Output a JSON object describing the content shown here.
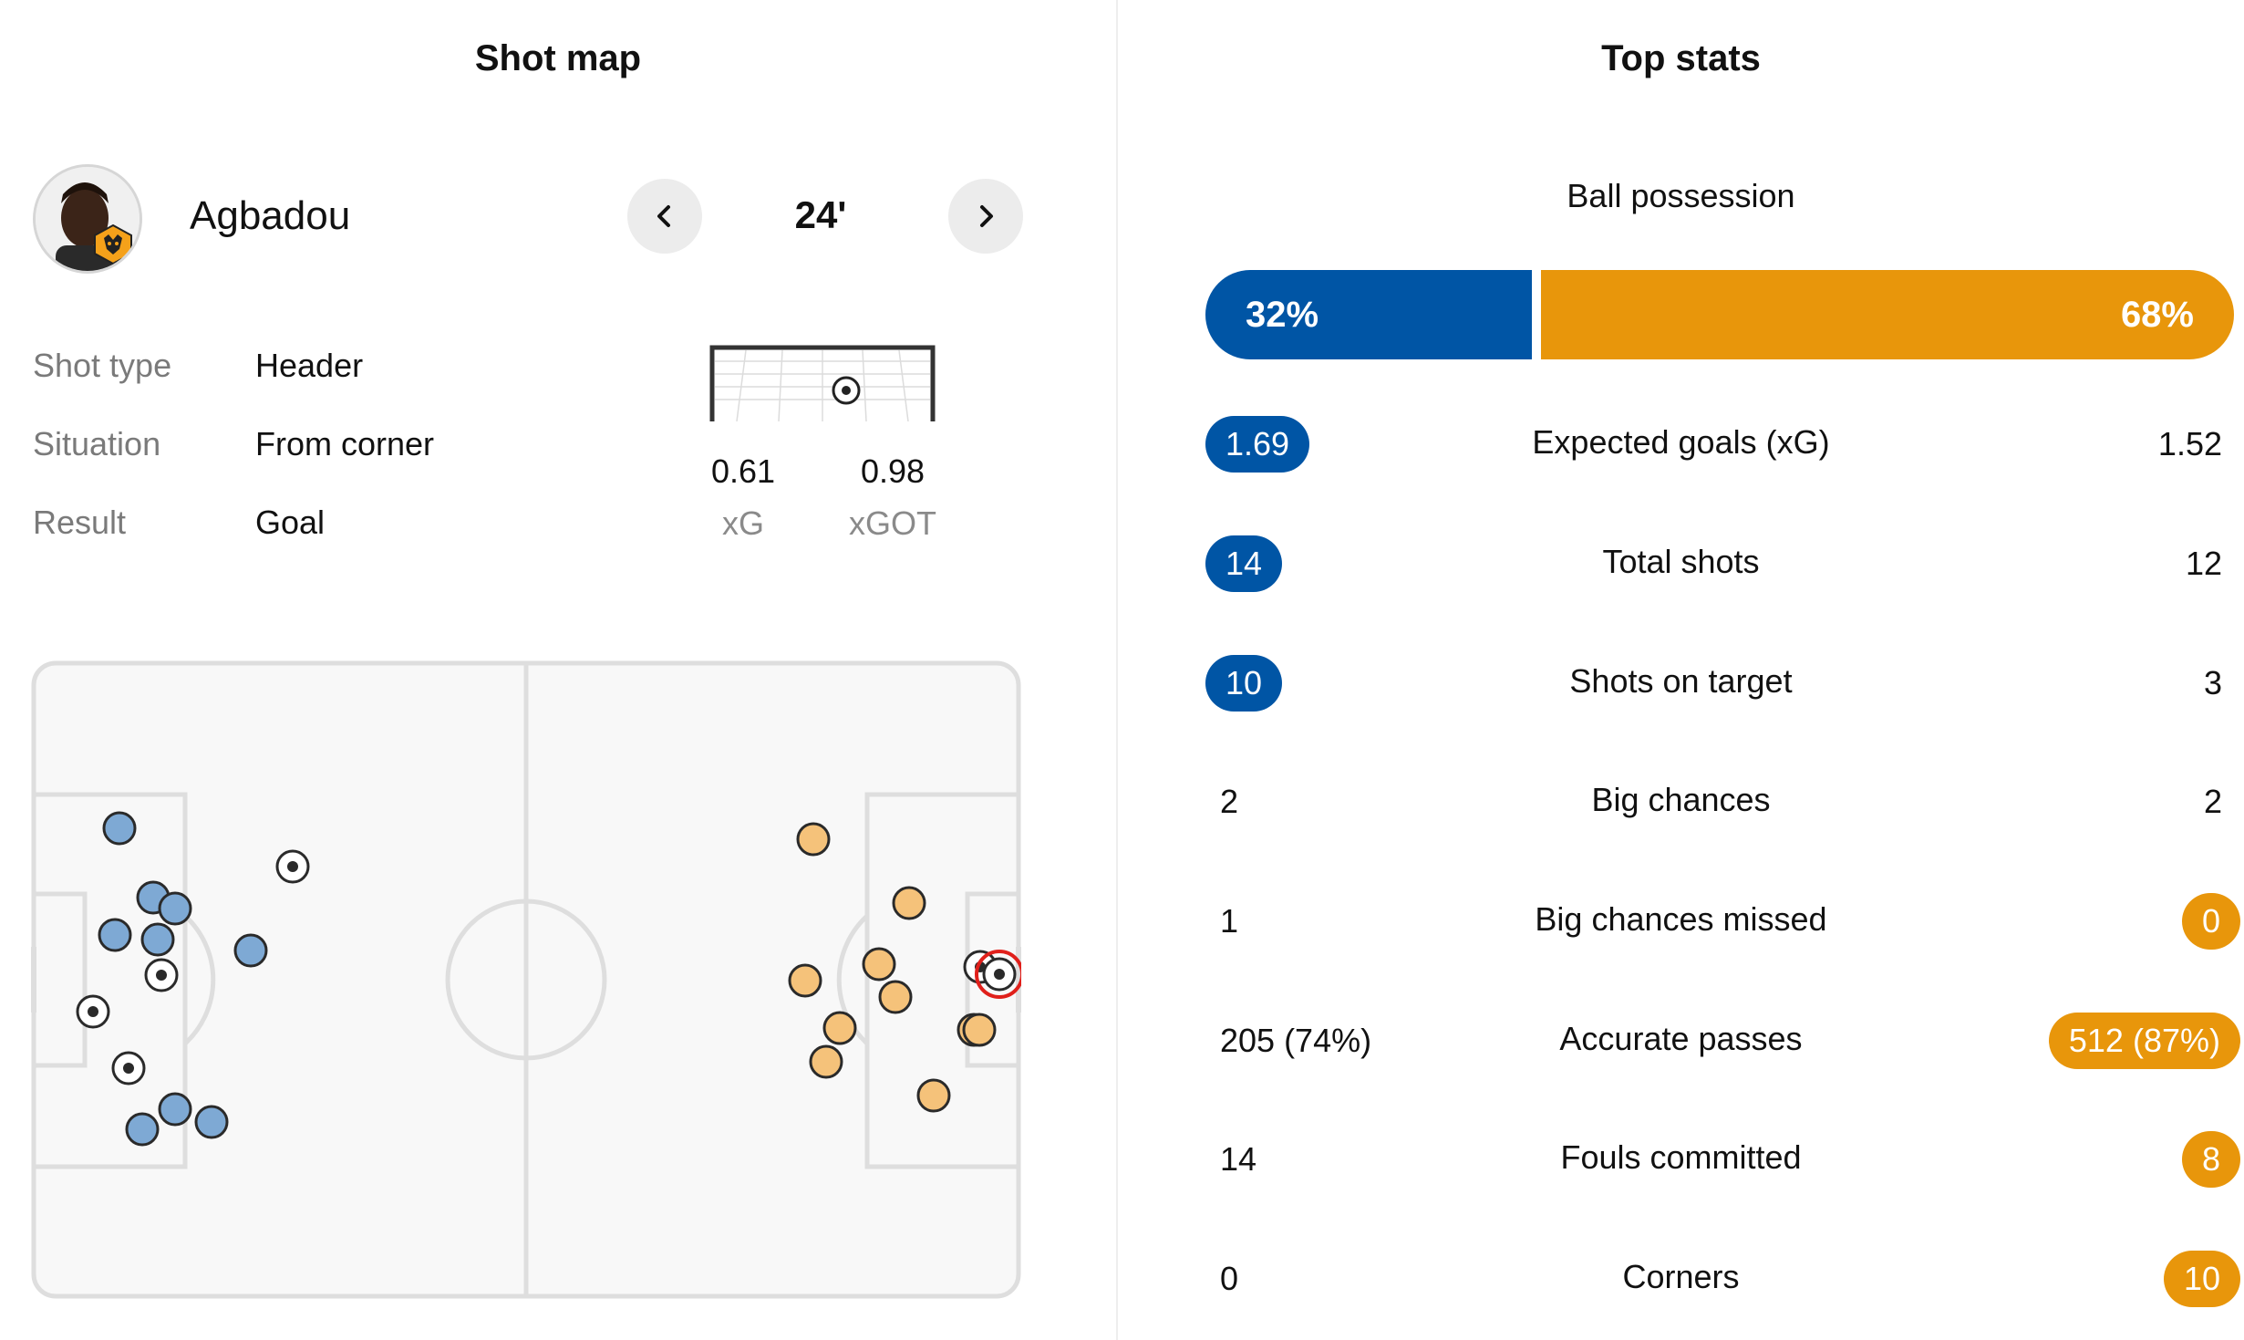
{
  "shot_map": {
    "title": "Shot map",
    "player": {
      "name": "Agbadou",
      "badge_icon": "wolves-badge-icon"
    },
    "minute": "24'",
    "details": [
      {
        "label": "Shot type",
        "value": "Header"
      },
      {
        "label": "Situation",
        "value": "From corner"
      },
      {
        "label": "Result",
        "value": "Goal"
      }
    ],
    "xg": {
      "value": "0.61",
      "label": "xG"
    },
    "xgot": {
      "value": "0.98",
      "label": "xGOT"
    },
    "colors": {
      "home": "#0055a5",
      "home_light": "#7ea9d4",
      "away": "#e8960b",
      "away_light": "#f5c27a",
      "selected": "#e0201b"
    }
  },
  "top_stats": {
    "title": "Top stats",
    "possession": {
      "label": "Ball possession",
      "home": "32%",
      "away": "68%",
      "home_value": 32,
      "away_value": 68
    },
    "rows": [
      {
        "label": "Expected goals (xG)",
        "home": "1.69",
        "away": "1.52",
        "highlight": "home"
      },
      {
        "label": "Total shots",
        "home": "14",
        "away": "12",
        "highlight": "home"
      },
      {
        "label": "Shots on target",
        "home": "10",
        "away": "3",
        "highlight": "home"
      },
      {
        "label": "Big chances",
        "home": "2",
        "away": "2",
        "highlight": "none"
      },
      {
        "label": "Big chances missed",
        "home": "1",
        "away": "0",
        "highlight": "away"
      },
      {
        "label": "Accurate passes",
        "home": "205 (74%)",
        "away": "512 (87%)",
        "highlight": "away"
      },
      {
        "label": "Fouls committed",
        "home": "14",
        "away": "8",
        "highlight": "away"
      },
      {
        "label": "Corners",
        "home": "0",
        "away": "10",
        "highlight": "away"
      }
    ]
  }
}
